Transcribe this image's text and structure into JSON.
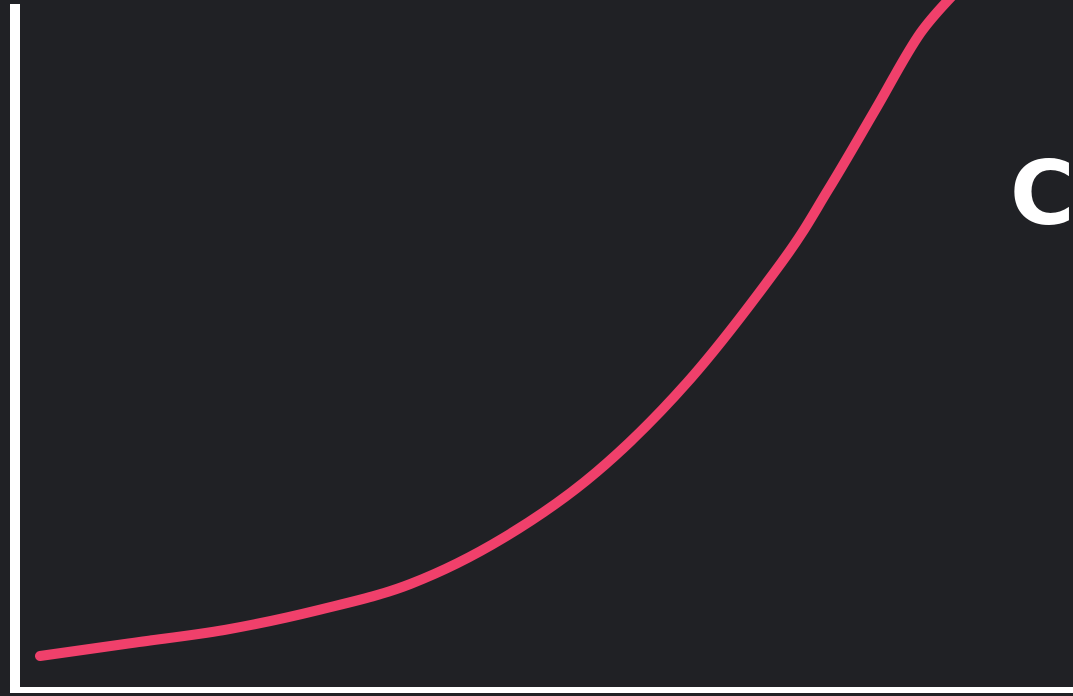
{
  "background_color": "#202125",
  "axis_color": "#ffffff",
  "curve_color": "#f0406b",
  "label": {
    "text": "C"
  },
  "chart_data": {
    "type": "line",
    "title": "",
    "xlabel": "",
    "ylabel": "",
    "grid": false,
    "xlim": [
      0,
      1
    ],
    "ylim": [
      0,
      1
    ],
    "series": [
      {
        "x": [
          0.0,
          0.1,
          0.2,
          0.3,
          0.4,
          0.5,
          0.6,
          0.7,
          0.8,
          0.85,
          0.9,
          0.95,
          1.0
        ],
        "y": [
          0.0,
          0.02,
          0.04,
          0.07,
          0.11,
          0.18,
          0.28,
          0.42,
          0.6,
          0.71,
          0.83,
          0.95,
          1.03
        ]
      }
    ]
  }
}
